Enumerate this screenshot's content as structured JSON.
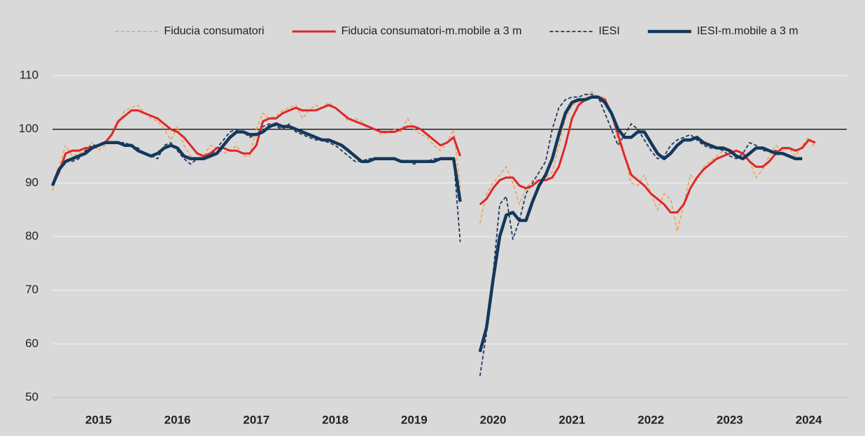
{
  "chart_data": {
    "type": "line",
    "categories": [
      null,
      null,
      null,
      null,
      null,
      null,
      null,
      "2015",
      null,
      null,
      null,
      null,
      null,
      null,
      null,
      null,
      null,
      null,
      null,
      "2016",
      null,
      null,
      null,
      null,
      null,
      null,
      null,
      null,
      null,
      null,
      null,
      "2017",
      null,
      null,
      null,
      null,
      null,
      null,
      null,
      null,
      null,
      null,
      null,
      "2018",
      null,
      null,
      null,
      null,
      null,
      null,
      null,
      null,
      null,
      null,
      null,
      "2019",
      null,
      null,
      null,
      null,
      null,
      null,
      null,
      null,
      null,
      null,
      null,
      "2020",
      null,
      null,
      null,
      null,
      null,
      null,
      null,
      null,
      null,
      null,
      null,
      "2021",
      null,
      null,
      null,
      null,
      null,
      null,
      null,
      null,
      null,
      null,
      null,
      "2022",
      null,
      null,
      null,
      null,
      null,
      null,
      null,
      null,
      null,
      null,
      null,
      "2023",
      null,
      null,
      null,
      null,
      null,
      null,
      null,
      null,
      null,
      null,
      null,
      "2024",
      null
    ],
    "series": [
      {
        "name": "Fiducia consumatori",
        "color": "#f0a050",
        "dashed": true,
        "width": 1.6,
        "values": [
          88.5,
          93,
          97,
          95,
          95.5,
          96,
          97.5,
          96,
          97,
          99,
          101,
          103.5,
          104,
          104.5,
          103,
          102,
          101.5,
          100,
          98,
          100.5,
          97,
          95,
          94.5,
          95,
          97,
          96.5,
          95.5,
          96,
          97,
          95,
          95,
          100,
          103,
          102,
          102.5,
          103.5,
          104,
          104.5,
          102,
          103.5,
          104.5,
          104,
          105,
          104,
          103,
          101.5,
          102,
          101.5,
          100.5,
          100,
          99,
          99.5,
          100,
          99.5,
          102,
          100,
          99,
          98.5,
          97,
          96,
          97.5,
          100,
          89,
          null,
          null,
          82.5,
          88,
          90,
          91.5,
          93,
          90,
          86,
          89,
          90.5,
          90.5,
          91,
          92,
          97,
          102,
          104.5,
          105,
          106,
          107,
          106,
          106,
          103,
          98,
          95,
          90,
          89.5,
          91.5,
          88,
          85,
          88,
          87,
          81,
          86,
          91.5,
          90.5,
          93,
          94,
          95,
          96,
          96,
          96,
          95,
          94,
          91,
          92.5,
          95,
          97,
          96,
          96.5,
          95,
          97,
          98.5,
          96.5
        ]
      },
      {
        "name": "Fiducia consumatori-m.mobile a 3 m",
        "color": "#e0262b",
        "dashed": false,
        "width": 3,
        "values": [
          89.5,
          92,
          95.5,
          96,
          96,
          96.5,
          96.5,
          97,
          97.5,
          99,
          101.5,
          102.5,
          103.5,
          103.5,
          103,
          102.5,
          102,
          101,
          100,
          99.5,
          98.5,
          97,
          95.5,
          95,
          95.5,
          96.5,
          96.5,
          96,
          96,
          95.5,
          95.5,
          97,
          101.5,
          102,
          102,
          103,
          103.5,
          104,
          103.5,
          103.5,
          103.5,
          104,
          104.5,
          104,
          103,
          102,
          101.5,
          101,
          100.5,
          100,
          99.5,
          99.5,
          99.5,
          100,
          100.5,
          100.5,
          100,
          99,
          98,
          97,
          97.5,
          98.5,
          95,
          null,
          null,
          86,
          87,
          89,
          90.5,
          91,
          91,
          89.5,
          89,
          89.5,
          90.5,
          90.5,
          91,
          93,
          97,
          102,
          104.5,
          105.5,
          106,
          106,
          105.5,
          103,
          99,
          95,
          91.5,
          90.5,
          89.5,
          88,
          87,
          86,
          84.5,
          84.5,
          86,
          89,
          91,
          92.5,
          93.5,
          94.5,
          95,
          95.5,
          96,
          95.5,
          94,
          93,
          93,
          94,
          95.5,
          96.5,
          96.5,
          96,
          96.5,
          98,
          97.5
        ]
      },
      {
        "name": "IESI",
        "color": "#1f3864",
        "dashed": true,
        "width": 1.8,
        "values": [
          89.5,
          92.5,
          94,
          94,
          94.5,
          96,
          97,
          97,
          97.5,
          97.5,
          97.5,
          97.5,
          97,
          96.5,
          95.5,
          95,
          94.5,
          97,
          97.5,
          96,
          94.5,
          93.5,
          94.5,
          95,
          95,
          96.5,
          98,
          99.5,
          100,
          99.5,
          98.5,
          99,
          100.5,
          101,
          100.5,
          100,
          101,
          99.5,
          99,
          98.5,
          98,
          98,
          97.5,
          97,
          96,
          95,
          94,
          94,
          94.5,
          94.5,
          94.5,
          94.5,
          94.5,
          94,
          94,
          93.5,
          94,
          94,
          94.5,
          94.5,
          94.5,
          94.5,
          79,
          null,
          null,
          54,
          62,
          73,
          86,
          87.5,
          79.5,
          83,
          88,
          90,
          92,
          94,
          100,
          104,
          105.5,
          106,
          106,
          106.5,
          106.5,
          106,
          103,
          100,
          97,
          99,
          101,
          100,
          98,
          96,
          94.5,
          95,
          97,
          98,
          98.5,
          99,
          98,
          97,
          96.5,
          96.5,
          96,
          95,
          94.5,
          95.5,
          97.5,
          97,
          96,
          96,
          96,
          95.5,
          95,
          94.5,
          94.5,
          null,
          null
        ]
      },
      {
        "name": "IESI-m.mobile a 3 m",
        "color": "#14385a",
        "dashed": false,
        "width": 4.5,
        "values": [
          89.5,
          92.5,
          94,
          94.5,
          95,
          95.5,
          96.5,
          97,
          97.5,
          97.5,
          97.5,
          97,
          97,
          96,
          95.5,
          95,
          95.5,
          96.5,
          97,
          96.5,
          95,
          94.5,
          94.5,
          94.5,
          95,
          95.5,
          97,
          98.5,
          99.5,
          99.5,
          99,
          99,
          99.5,
          100.5,
          101,
          100.5,
          100.5,
          100,
          99.5,
          99,
          98.5,
          98,
          98,
          97.5,
          97,
          96,
          95,
          94,
          94,
          94.5,
          94.5,
          94.5,
          94.5,
          94,
          94,
          94,
          94,
          94,
          94,
          94.5,
          94.5,
          94.5,
          86.5,
          null,
          null,
          58.5,
          63,
          72,
          80,
          84,
          84.5,
          83,
          83,
          86.5,
          89.5,
          91.5,
          94.5,
          99,
          103,
          105,
          105.5,
          105.5,
          106,
          106,
          105,
          103,
          100,
          98.5,
          98.5,
          99.5,
          99.5,
          97.5,
          95.5,
          94.5,
          95.5,
          97,
          98,
          98,
          98.5,
          97.5,
          97,
          96.5,
          96.5,
          96,
          95,
          94.5,
          95.5,
          96.5,
          96.5,
          96,
          95.5,
          95.5,
          95,
          94.5,
          94.5,
          null,
          null
        ]
      }
    ],
    "ylim": [
      50,
      110
    ],
    "yticks": [
      50,
      60,
      70,
      80,
      90,
      100,
      110
    ],
    "reference_line": 100,
    "grid": true,
    "legend": "top"
  }
}
